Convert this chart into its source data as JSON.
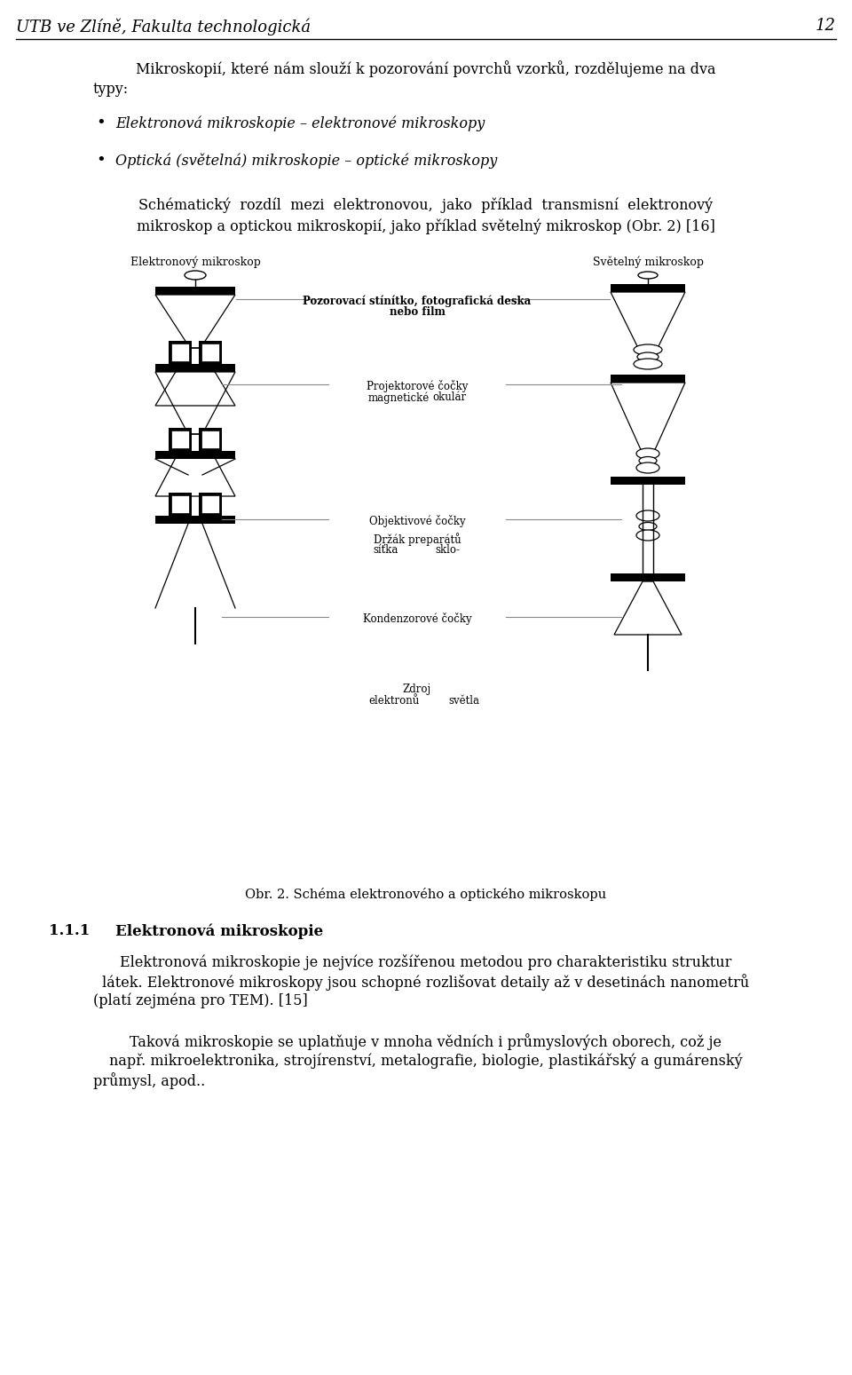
{
  "page_title": "UTB ve Zlíně, Fakulta technologická",
  "page_number": "12",
  "bg_color": "#ffffff",
  "text_color": "#000000",
  "header_fontsize": 13,
  "body_fontsize": 11.5,
  "label_fontsize": 8.5,
  "fig_caption": "Obr. 2. Schéma elektronového a optického mikroskopu",
  "section_title": "1.1.1",
  "section_title2": "Elektronová mikroskopie",
  "line1": "Mikroskopií, které nám slouží k pozorování povrchů vzorků, rozdělujeme na dva",
  "line1b": "typy:",
  "bullet1": "Elektronová mikroskopie – elektronové mikroskopy",
  "bullet2": "Optická (světelná) mikroskopie – optické mikroskopy",
  "para2_line1": "Schématický  rozdíl  mezi  elektronovou,  jako  příklad  transmisní  elektronový",
  "para2_line2": "mikroskop a optickou mikroskopií, jako příklad světelný mikroskop (Obr. 2) [16]",
  "em_label": "Elektronový mikroskop",
  "lm_label": "Světelný mikroskop",
  "lbl_poz1": "Pozorovací stínítko, fotografická deska",
  "lbl_poz2": "nebo film",
  "lbl_proj1": "Projektorové čočky",
  "lbl_proj2a": "magnetické",
  "lbl_proj2b": "okulár",
  "lbl_obj": "Objektivové čočky",
  "lbl_drzak1": "Držák preparátů",
  "lbl_drzak2a": "síťka",
  "lbl_drzak2b": "sklo-",
  "lbl_kond": "Kondenzorové čočky",
  "lbl_zdroj": "Zdroj",
  "lbl_el": "elektronů",
  "lbl_sv": "světla",
  "sec_p1_l1": "Elektronová mikroskopie je nejvíce rozšířenou metodou pro charakteristiku struktur",
  "sec_p1_l2": "látek. Elektronové mikroskopy jsou schopné rozlišovat detaily až v desetinách nanometrů",
  "sec_p1_l3": "(platí zejména pro TEM). [15]",
  "sec_p2_l1": "Taková mikroskopie se uplatňuje v mnoha vědních i průmyslových oborech, což je",
  "sec_p2_l2": "např. mikroelektronika, strojírenství, metalografie, biologie, plastikářský a gumárenský",
  "sec_p2_l3": "průmysl, apod.."
}
